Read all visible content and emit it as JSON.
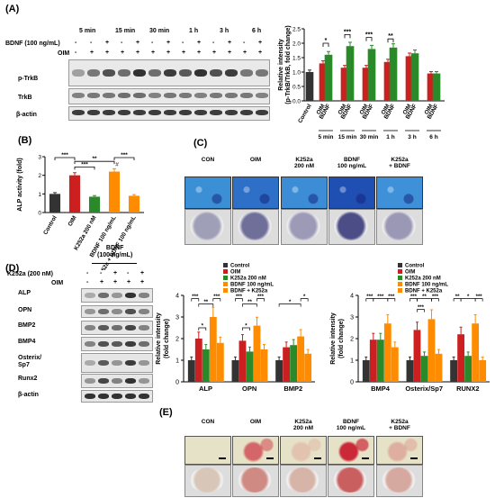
{
  "panels": {
    "a": "(A)",
    "b": "(B)",
    "c": "(C)",
    "d": "(D)",
    "e": "(E)"
  },
  "panelA": {
    "time_points": [
      "5 min",
      "15 min",
      "30 min",
      "1 h",
      "3 h",
      "6 h"
    ],
    "row_bdnf_label": "BDNF (100 ng/mL)",
    "row_oim_label": "OIM",
    "bdnf_signs": [
      "-",
      "-",
      "+",
      "-",
      "+",
      "-",
      "+",
      "-",
      "+",
      "-",
      "+",
      "-",
      "+"
    ],
    "oim_signs": [
      "-",
      "+",
      "+",
      "+",
      "+",
      "+",
      "+",
      "+",
      "+",
      "+",
      "+",
      "+",
      "+"
    ],
    "blot_labels": [
      "p-TrkB",
      "TrkB",
      "β-actin"
    ]
  },
  "panelB": {
    "bar_labels": [
      "Control",
      "OIM",
      "K252a 200 nM",
      "BDNF 100 ng/mL",
      "K252a + BDNF 100 ng/mL"
    ]
  },
  "panelC": {
    "headers": [
      "CON",
      "OIM",
      "K252a\n200 nM",
      "BDNF\n100 ng/mL",
      "K252a\n+ BDNF"
    ]
  },
  "panelD": {
    "bdnf_header": "BDNF\n(100 ng/mL)",
    "k252a_label": "K252a (200 nM)",
    "oim_label": "OIM",
    "k252a_signs": [
      "-",
      "-",
      "+",
      "-",
      "+"
    ],
    "oim_signs": [
      "-",
      "+",
      "+",
      "+",
      "+"
    ],
    "blot_labels": [
      "ALP",
      "OPN",
      "BMP2",
      "BMP4",
      "Osterix/\nSp7",
      "Runx2",
      "β-actin"
    ]
  },
  "panelE": {
    "headers": [
      "CON",
      "OIM",
      "K252a\n200 nM",
      "BDNF\n100 ng/mL",
      "K252a\n+ BDNF"
    ]
  },
  "colors": {
    "control": "#333333",
    "oim": "#cc1f1f",
    "k252a": "#2a8a2a",
    "bdnf": "#ff8c00",
    "combo": "#ff8c00"
  },
  "chart_data": [
    {
      "type": "bar",
      "panel": "A",
      "ylabel": "Relative intensity\n(p-TrkB/TrkB, fold change)",
      "ylim": [
        0,
        2.5
      ],
      "yticks": [
        "0.0",
        "0.5",
        "1.0",
        "1.5",
        "2.0",
        "2.5"
      ],
      "groups": [
        "5 min",
        "15 min",
        "30 min",
        "1 h",
        "3 h",
        "6 h"
      ],
      "categories": [
        "Control",
        "OIM",
        "BDNF",
        "OIM",
        "BDNF",
        "OIM",
        "BDNF",
        "OIM",
        "BDNF",
        "OIM",
        "BDNF",
        "OIM",
        "BDNF"
      ],
      "values": [
        1.0,
        1.3,
        1.6,
        1.15,
        1.9,
        1.15,
        1.8,
        1.35,
        1.85,
        1.55,
        1.65,
        0.95,
        0.95
      ],
      "colors": [
        "#333333",
        "#cc1f1f",
        "#2a8a2a",
        "#cc1f1f",
        "#2a8a2a",
        "#cc1f1f",
        "#2a8a2a",
        "#cc1f1f",
        "#2a8a2a",
        "#cc1f1f",
        "#2a8a2a",
        "#cc1f1f",
        "#2a8a2a"
      ],
      "annotations": [
        "*",
        "***",
        "***",
        "**"
      ]
    },
    {
      "type": "bar",
      "panel": "B",
      "ylabel": "ALP activity (fold)",
      "ylim": [
        0,
        3
      ],
      "yticks": [
        "0",
        "1",
        "2",
        "3"
      ],
      "categories": [
        "Control",
        "OIM",
        "K252a 200 nM",
        "BDNF 100 ng/mL",
        "K252a + BDNF 100 ng/mL"
      ],
      "values": [
        1.0,
        2.0,
        0.85,
        2.2,
        0.9
      ],
      "colors": [
        "#333333",
        "#cc1f1f",
        "#2a8a2a",
        "#ff8c00",
        "#ff8c00"
      ],
      "annotations": [
        "***",
        "**",
        "***",
        "***",
        "#"
      ]
    },
    {
      "type": "bar",
      "panel": "D-left",
      "ylabel": "Relative intensity\n(fold change)",
      "ylim": [
        0,
        4
      ],
      "yticks": [
        "0",
        "1",
        "2",
        "3",
        "4"
      ],
      "categories": [
        "ALP",
        "OPN",
        "BMP2"
      ],
      "legend": [
        "Control",
        "OIM",
        "K252a 200 nM",
        "BDNF 100 ng/mL",
        "BDNF + K252a"
      ],
      "series": [
        {
          "name": "Control",
          "values": [
            1.0,
            1.0,
            1.0
          ]
        },
        {
          "name": "OIM",
          "values": [
            2.0,
            1.9,
            1.6
          ]
        },
        {
          "name": "K252a 200 nM",
          "values": [
            1.5,
            1.4,
            1.7
          ]
        },
        {
          "name": "BDNF 100 ng/mL",
          "values": [
            3.0,
            2.6,
            2.1
          ]
        },
        {
          "name": "BDNF + K252a",
          "values": [
            1.8,
            1.5,
            1.3
          ]
        }
      ],
      "annotations": [
        "***",
        "**",
        "***",
        "*",
        "***",
        "**",
        "***",
        "*",
        "*",
        "*",
        "#"
      ]
    },
    {
      "type": "bar",
      "panel": "D-right",
      "ylabel": "Relative intensity\n(fold change)",
      "ylim": [
        0,
        4
      ],
      "yticks": [
        "0",
        "1",
        "2",
        "3",
        "4"
      ],
      "categories": [
        "BMP4",
        "Osterix/Sp7",
        "RUNX2"
      ],
      "legend": [
        "Control",
        "OIM",
        "K252a 200 nM",
        "BDNF 100 ng/mL",
        "BDNF + K252a"
      ],
      "series": [
        {
          "name": "Control",
          "values": [
            1.0,
            1.0,
            1.0
          ]
        },
        {
          "name": "OIM",
          "values": [
            1.95,
            2.4,
            2.2
          ]
        },
        {
          "name": "K252a 200 nM",
          "values": [
            1.95,
            1.2,
            1.2
          ]
        },
        {
          "name": "BDNF 100 ng/mL",
          "values": [
            2.7,
            2.9,
            2.7
          ]
        },
        {
          "name": "BDNF + K252a",
          "values": [
            1.6,
            1.3,
            1.0
          ]
        }
      ],
      "annotations": [
        "***",
        "***",
        "***",
        "***",
        "**",
        "***",
        "***",
        "**",
        "*",
        "***",
        "#"
      ]
    }
  ]
}
